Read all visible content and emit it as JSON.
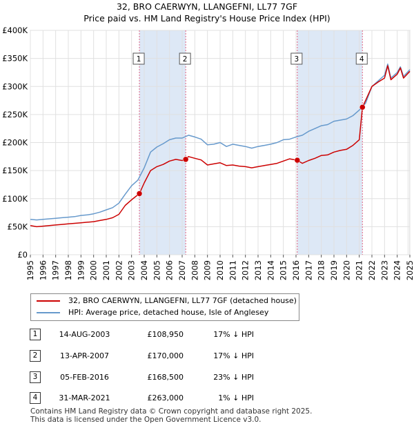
{
  "title": "32, BRO CAERWYN, LLANGEFNI, LL77 7GF",
  "subtitle": "Price paid vs. HM Land Registry's House Price Index (HPI)",
  "colors": {
    "property": "#cc0000",
    "hpi": "#6699cc",
    "band": "#dde8f6",
    "marker_line": "#e06080",
    "grid": "#e0e0e0"
  },
  "legend": {
    "property": "32, BRO CAERWYN, LLANGEFNI, LL77 7GF (detached house)",
    "hpi": "HPI: Average price, detached house, Isle of Anglesey"
  },
  "sales": [
    {
      "id": "1",
      "date": "14-AUG-2003",
      "price": "£108,950",
      "hpi": "17% ↓ HPI",
      "t": 2003.62,
      "v": 108950
    },
    {
      "id": "2",
      "date": "13-APR-2007",
      "price": "£170,000",
      "hpi": "17% ↓ HPI",
      "t": 2007.28,
      "v": 170000
    },
    {
      "id": "3",
      "date": "05-FEB-2016",
      "price": "£168,500",
      "hpi": "23% ↓ HPI",
      "t": 2016.1,
      "v": 168500
    },
    {
      "id": "4",
      "date": "31-MAR-2021",
      "price": "£263,000",
      "hpi": "1% ↓ HPI",
      "t": 2021.25,
      "v": 263000
    }
  ],
  "footer": [
    "Contains HM Land Registry data © Crown copyright and database right 2025.",
    "This data is licensed under the Open Government Licence v3.0."
  ],
  "chart_data": {
    "type": "line",
    "title": "32, BRO CAERWYN, LLANGEFNI, LL77 7GF",
    "subtitle": "Price paid vs. HM Land Registry's House Price Index (HPI)",
    "xlim": [
      1995,
      2025
    ],
    "ylim": [
      0,
      400000
    ],
    "yticks": [
      0,
      50000,
      100000,
      150000,
      200000,
      250000,
      300000,
      350000,
      400000
    ],
    "ytick_labels": [
      "£0",
      "£50K",
      "£100K",
      "£150K",
      "£200K",
      "£250K",
      "£300K",
      "£350K",
      "£400K"
    ],
    "xticks": [
      "1995",
      "1996",
      "1997",
      "1998",
      "1999",
      "2000",
      "2001",
      "2002",
      "2003",
      "2004",
      "2005",
      "2006",
      "2007",
      "2008",
      "2009",
      "2010",
      "2011",
      "2012",
      "2013",
      "2014",
      "2015",
      "2016",
      "2017",
      "2018",
      "2019",
      "2020",
      "2021",
      "2022",
      "2023",
      "2024",
      "2025"
    ],
    "grid": true,
    "series": [
      {
        "name": "HPI: Average price, detached house, Isle of Anglesey",
        "x": [
          1995,
          1995.5,
          1996,
          1996.5,
          1997,
          1997.5,
          1998,
          1998.5,
          1999,
          1999.5,
          2000,
          2000.5,
          2001,
          2001.5,
          2002,
          2002.5,
          2003,
          2003.5,
          2004,
          2004.5,
          2005,
          2005.5,
          2006,
          2006.5,
          2007,
          2007.5,
          2008,
          2008.5,
          2009,
          2009.5,
          2010,
          2010.5,
          2011,
          2011.5,
          2012,
          2012.5,
          2013,
          2013.5,
          2014,
          2014.5,
          2015,
          2015.5,
          2016,
          2016.5,
          2017,
          2017.5,
          2018,
          2018.5,
          2019,
          2019.5,
          2020,
          2020.5,
          2021,
          2021.5,
          2022,
          2022.5,
          2023,
          2023.25,
          2023.5,
          2024,
          2024.25,
          2024.5,
          2025
        ],
        "y": [
          63000,
          62000,
          63000,
          64000,
          65000,
          66000,
          67000,
          68000,
          70000,
          71000,
          73000,
          76000,
          80000,
          84000,
          92000,
          108000,
          123000,
          133000,
          155000,
          183000,
          192000,
          198000,
          205000,
          208000,
          208000,
          213000,
          210000,
          206000,
          196000,
          197000,
          200000,
          193000,
          197000,
          195000,
          193000,
          190000,
          193000,
          195000,
          197000,
          200000,
          205000,
          206000,
          210000,
          213000,
          220000,
          225000,
          230000,
          232000,
          238000,
          240000,
          242000,
          248000,
          258000,
          270000,
          300000,
          310000,
          320000,
          340000,
          315000,
          325000,
          335000,
          318000,
          330000
        ]
      },
      {
        "name": "32, BRO CAERWYN, LLANGEFNI, LL77 7GF (detached house)",
        "x": [
          1995,
          1995.5,
          1996,
          1996.5,
          1997,
          1997.5,
          1998,
          1998.5,
          1999,
          1999.5,
          2000,
          2000.5,
          2001,
          2001.5,
          2002,
          2002.5,
          2003,
          2003.62,
          2004,
          2004.5,
          2005,
          2005.5,
          2006,
          2006.5,
          2007,
          2007.28,
          2007.5,
          2008,
          2008.5,
          2009,
          2009.5,
          2010,
          2010.5,
          2011,
          2011.5,
          2012,
          2012.5,
          2013,
          2013.5,
          2014,
          2014.5,
          2015,
          2015.5,
          2016.1,
          2016.5,
          2017,
          2017.5,
          2018,
          2018.5,
          2019,
          2019.5,
          2020,
          2020.5,
          2021,
          2021.25,
          2021.5,
          2022,
          2022.5,
          2023,
          2023.25,
          2023.5,
          2024,
          2024.25,
          2024.5,
          2025
        ],
        "y": [
          52000,
          50000,
          51000,
          52000,
          53000,
          54000,
          55000,
          56000,
          57000,
          58000,
          59000,
          61000,
          63000,
          66000,
          72000,
          88000,
          98000,
          108950,
          128000,
          150000,
          157000,
          161000,
          167000,
          170000,
          168000,
          170000,
          175000,
          172000,
          169000,
          160000,
          162000,
          164000,
          159000,
          160000,
          158000,
          157000,
          155000,
          157000,
          159000,
          161000,
          163000,
          167000,
          171000,
          168500,
          163000,
          168000,
          172000,
          177000,
          178000,
          183000,
          186000,
          188000,
          195000,
          205000,
          263000,
          275000,
          300000,
          308000,
          315000,
          337000,
          312000,
          322000,
          333000,
          315000,
          327000
        ]
      }
    ],
    "annotations": [
      {
        "label": "1",
        "x": 2003.62,
        "value": 108950
      },
      {
        "label": "2",
        "x": 2007.28,
        "value": 170000
      },
      {
        "label": "3",
        "x": 2016.1,
        "value": 168500
      },
      {
        "label": "4",
        "x": 2021.25,
        "value": 263000
      }
    ]
  }
}
